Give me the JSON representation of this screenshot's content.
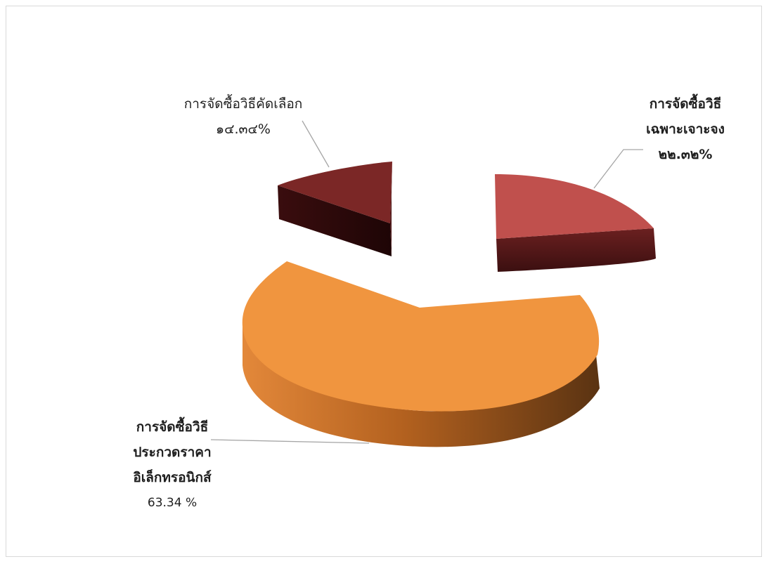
{
  "chart_data": {
    "type": "pie",
    "title": "",
    "style": "3d-exploded",
    "slices": [
      {
        "label": [
          "การจัดซื้อวิธี",
          "ประกวดราคา",
          "อิเล็กทรอนิกส์"
        ],
        "value": 63.34,
        "value_label": "63.34 %",
        "color": "#f0953f",
        "side_color": "#a8561c"
      },
      {
        "label": [
          "การจัดซื้อวิธีคัดเลือก"
        ],
        "value": 14.34,
        "value_label": "๑๔.๓๔%",
        "color": "#7b2726",
        "side_color": "#3a0e0f"
      },
      {
        "label": [
          "การจัดซื้อวิธี",
          "เฉพาะเจาะจง"
        ],
        "value": 22.32,
        "value_label": "๒๒.๓๒%",
        "color": "#c0504d",
        "side_color": "#5a1a1a"
      }
    ]
  }
}
